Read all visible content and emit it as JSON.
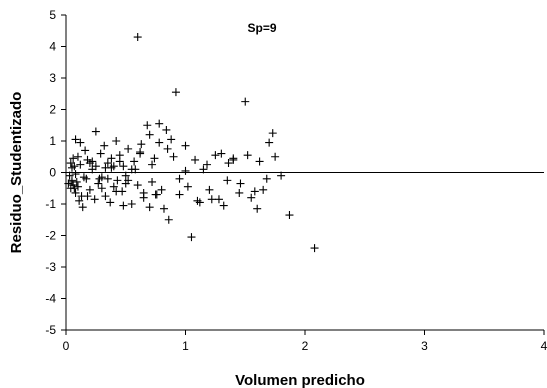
{
  "chart_data": {
    "type": "scatter",
    "title": "",
    "annotation": "Sp=9",
    "xlabel": "Volumen predicho",
    "ylabel": "Residuo_Studentizado",
    "xlim": [
      0,
      4
    ],
    "ylim": [
      -5,
      5
    ],
    "xticks": [
      0,
      1,
      2,
      3,
      4
    ],
    "yticks": [
      -5,
      -4,
      -3,
      -2,
      -1,
      0,
      1,
      2,
      3,
      4,
      5
    ],
    "grid": false,
    "legend": "none",
    "zero_line": 0,
    "marker": "plus",
    "colors": {
      "marker": "#000000",
      "axis": "#000000",
      "zero_line": "#000000"
    },
    "x": [
      0.02,
      0.03,
      0.04,
      0.04,
      0.05,
      0.05,
      0.06,
      0.06,
      0.07,
      0.08,
      0.08,
      0.09,
      0.1,
      0.11,
      0.12,
      0.14,
      0.16,
      0.17,
      0.18,
      0.2,
      0.22,
      0.24,
      0.25,
      0.27,
      0.29,
      0.3,
      0.32,
      0.33,
      0.35,
      0.37,
      0.38,
      0.4,
      0.42,
      0.43,
      0.45,
      0.47,
      0.48,
      0.5,
      0.52,
      0.55,
      0.57,
      0.6,
      0.63,
      0.65,
      0.7,
      0.72,
      0.74,
      0.76,
      0.78,
      0.82,
      0.84,
      0.86,
      0.9,
      0.95,
      1.0,
      1.05,
      1.08,
      1.1,
      1.15,
      1.2,
      1.25,
      1.28,
      1.32,
      1.36,
      1.4,
      1.46,
      1.52,
      1.58,
      1.62,
      1.68,
      1.73,
      1.8,
      1.87,
      2.08,
      0.6,
      0.92,
      0.78,
      0.68,
      0.3,
      0.12,
      0.15,
      0.25,
      0.35,
      0.45,
      0.55,
      0.65,
      0.85,
      0.95,
      1.12,
      1.3,
      1.45,
      1.6,
      1.7,
      0.08,
      0.1,
      0.22,
      0.4,
      0.5,
      0.62,
      0.75,
      0.88,
      1.02,
      1.18,
      1.35,
      1.5,
      1.65,
      0.05,
      0.18,
      0.28,
      0.38,
      0.48,
      0.58,
      0.7,
      0.8,
      1.0,
      1.22,
      1.55,
      0.07,
      0.13,
      0.2,
      0.33,
      0.42,
      0.52,
      0.62,
      0.72,
      1.4,
      1.75
    ],
    "y": [
      -0.35,
      -0.1,
      0.3,
      -0.5,
      0.15,
      -0.25,
      0.45,
      -0.4,
      0.2,
      -0.65,
      1.05,
      -0.3,
      0.5,
      -0.9,
      0.25,
      -1.1,
      0.7,
      -0.2,
      0.4,
      -0.55,
      0.1,
      -0.85,
      1.3,
      -0.35,
      0.6,
      -0.15,
      0.85,
      -0.75,
      0.3,
      -0.95,
      0.15,
      -0.45,
      1.0,
      -0.25,
      0.55,
      -0.6,
      0.2,
      -0.1,
      0.75,
      -1.0,
      0.35,
      -0.4,
      0.9,
      -0.8,
      1.2,
      -0.3,
      0.45,
      -0.7,
      0.95,
      -1.15,
      1.35,
      -1.5,
      0.5,
      -0.2,
      0.85,
      -2.05,
      0.4,
      -0.9,
      0.1,
      -0.55,
      0.55,
      -0.85,
      -1.05,
      0.3,
      0.45,
      -0.35,
      0.55,
      -0.6,
      0.35,
      -0.2,
      1.25,
      -0.1,
      -1.35,
      -2.4,
      4.3,
      2.55,
      1.55,
      1.5,
      -0.5,
      0.95,
      -0.15,
      0.2,
      -0.2,
      0.35,
      0.1,
      -0.65,
      0.75,
      -0.7,
      -0.95,
      0.6,
      -0.65,
      -1.15,
      0.95,
      -0.05,
      -0.45,
      0.35,
      0.2,
      -0.35,
      0.6,
      -0.7,
      1.05,
      -0.45,
      0.25,
      -0.25,
      2.25,
      -0.55,
      -0.3,
      -0.75,
      -0.2,
      0.45,
      -1.05,
      0.1,
      -1.1,
      -0.55,
      0.05,
      -0.85,
      -0.8,
      -0.5,
      -0.75,
      0.3,
      0.15,
      -0.6,
      -0.25,
      0.65,
      0.25,
      0.4,
      0.5
    ]
  }
}
